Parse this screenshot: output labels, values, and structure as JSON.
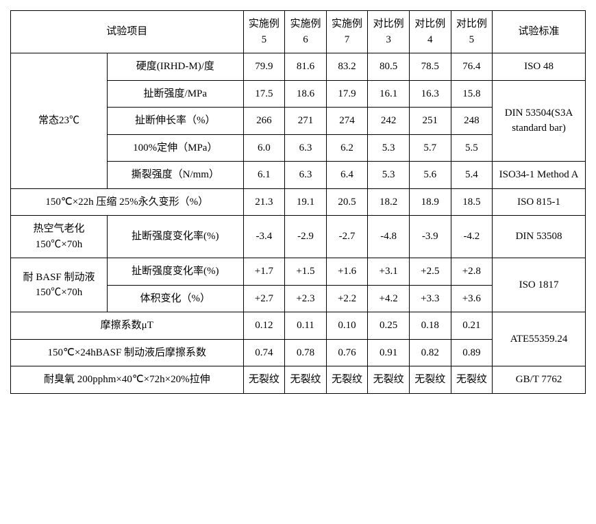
{
  "header": {
    "test_item": "试验项目",
    "cols": [
      "实施例 5",
      "实施例 6",
      "实施例 7",
      "对比例 3",
      "对比例 4",
      "对比例 5"
    ],
    "standard": "试验标准"
  },
  "normal": {
    "label": "常态23℃",
    "rows": [
      {
        "name": "硬度(IRHD-M)/度",
        "v": [
          "79.9",
          "81.6",
          "83.2",
          "80.5",
          "78.5",
          "76.4"
        ],
        "std": "ISO 48"
      },
      {
        "name": "扯断强度/MPa",
        "v": [
          "17.5",
          "18.6",
          "17.9",
          "16.1",
          "16.3",
          "15.8"
        ]
      },
      {
        "name": "扯断伸长率（%）",
        "v": [
          "266",
          "271",
          "274",
          "242",
          "251",
          "248"
        ]
      },
      {
        "name": "100%定伸（MPa）",
        "v": [
          "6.0",
          "6.3",
          "6.2",
          "5.3",
          "5.7",
          "5.5"
        ]
      },
      {
        "name": "撕裂强度（N/mm）",
        "v": [
          "6.1",
          "6.3",
          "6.4",
          "5.3",
          "5.6",
          "5.4"
        ],
        "std": "ISO34-1 Method A"
      }
    ],
    "std_group": "DIN 53504(S3A standard bar)"
  },
  "compress": {
    "name": "150℃×22h 压缩 25%永久变形（%）",
    "v": [
      "21.3",
      "19.1",
      "20.5",
      "18.2",
      "18.9",
      "18.5"
    ],
    "std": "ISO 815-1"
  },
  "hotair": {
    "label": "热空气老化150℃×70h",
    "name": "扯断强度变化率(%)",
    "v": [
      "-3.4",
      "-2.9",
      "-2.7",
      "-4.8",
      "-3.9",
      "-4.2"
    ],
    "std": "DIN 53508"
  },
  "basf": {
    "label": "耐 BASF 制动液 150℃×70h",
    "rows": [
      {
        "name": "扯断强度变化率(%)",
        "v": [
          "+1.7",
          "+1.5",
          "+1.6",
          "+3.1",
          "+2.5",
          "+2.8"
        ]
      },
      {
        "name": "体积变化（%）",
        "v": [
          "+2.7",
          "+2.3",
          "+2.2",
          "+4.2",
          "+3.3",
          "+3.6"
        ]
      }
    ],
    "std": "ISO 1817"
  },
  "friction": {
    "rows": [
      {
        "name": "摩擦系数μT",
        "v": [
          "0.12",
          "0.11",
          "0.10",
          "0.25",
          "0.18",
          "0.21"
        ]
      },
      {
        "name": "150℃×24hBASF 制动液后摩擦系数",
        "v": [
          "0.74",
          "0.78",
          "0.76",
          "0.91",
          "0.82",
          "0.89"
        ]
      }
    ],
    "std": "ATE55359.24"
  },
  "ozone": {
    "name": "耐臭氧 200pphm×40℃×72h×20%拉伸",
    "v": [
      "无裂纹",
      "无裂纹",
      "无裂纹",
      "无裂纹",
      "无裂纹",
      "无裂纹"
    ],
    "std": "GB/T 7762"
  }
}
